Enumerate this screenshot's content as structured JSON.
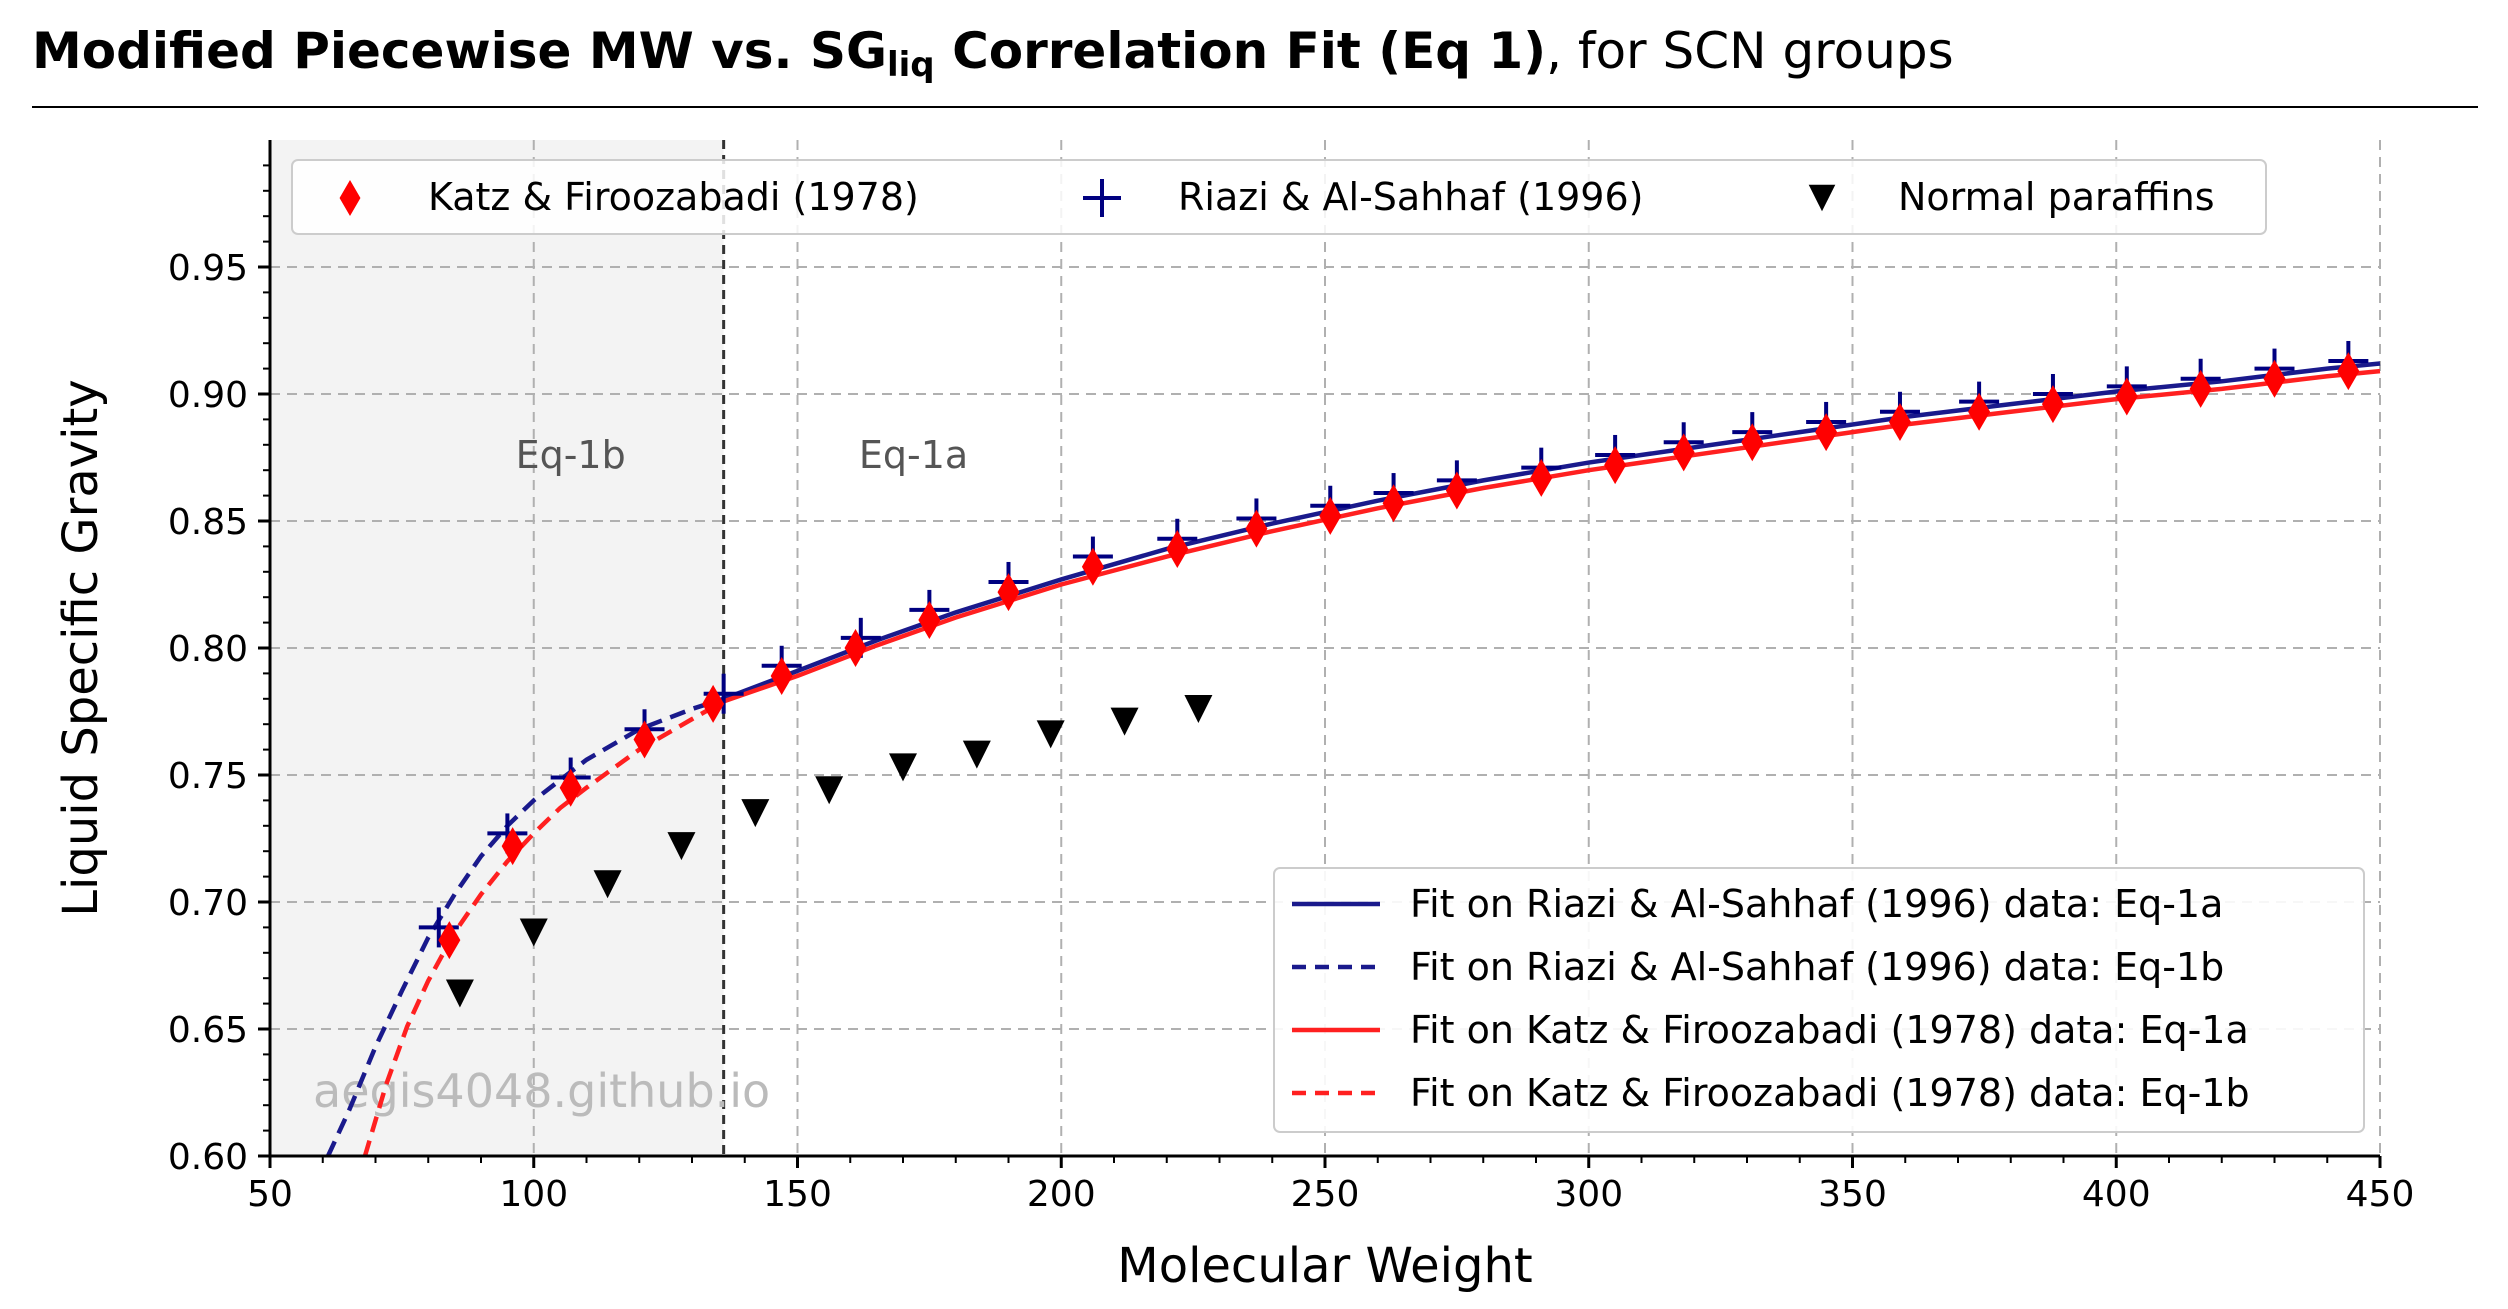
{
  "title": {
    "bold_part1": "Modified Piecewise MW vs. ",
    "bold_sg": "SG",
    "bold_sub": "liq",
    "bold_part2": " Correlation Fit (Eq 1)",
    "normal_part": ", for SCN groups"
  },
  "chart_data": {
    "type": "scatter",
    "xlabel": "Molecular Weight",
    "ylabel": "Liquid Specific Gravity",
    "xlim": [
      50,
      450
    ],
    "ylim": [
      0.6,
      1.0
    ],
    "x_ticks": [
      "50",
      "100",
      "150",
      "200",
      "250",
      "300",
      "350",
      "400",
      "450"
    ],
    "x_tick_values": [
      50,
      100,
      150,
      200,
      250,
      300,
      350,
      400,
      450
    ],
    "y_ticks": [
      "0.60",
      "0.65",
      "0.70",
      "0.75",
      "0.80",
      "0.85",
      "0.90",
      "0.95"
    ],
    "y_tick_values": [
      0.6,
      0.65,
      0.7,
      0.75,
      0.8,
      0.85,
      0.9,
      0.95
    ],
    "grid": true,
    "shaded_region": {
      "x": [
        50,
        136
      ],
      "color": "#f3f3f3"
    },
    "divider_x": 136,
    "region_labels": [
      {
        "text": "Eq-1b",
        "x": 107,
        "y": 0.875
      },
      {
        "text": "Eq-1a",
        "x": 172,
        "y": 0.875
      }
    ],
    "watermark": "aegis4048.github.io",
    "top_legend": {
      "placement": "top",
      "entries": [
        {
          "label": "Katz & Firoozabadi (1978)",
          "marker": "diamond",
          "color": "#ff0000"
        },
        {
          "label": "Riazi & Al-Sahhaf (1996)",
          "marker": "plus",
          "color": "#000080"
        },
        {
          "label": "Normal paraffins",
          "marker": "triangle-down",
          "color": "#000000"
        }
      ]
    },
    "fit_legend": {
      "placement": "lower-right",
      "entries": [
        {
          "label": "Fit on Riazi & Al-Sahhaf (1996) data: Eq-1a",
          "color": "#1a1a8c",
          "dash": false
        },
        {
          "label": "Fit on Riazi & Al-Sahhaf (1996) data: Eq-1b",
          "color": "#1a1a8c",
          "dash": true
        },
        {
          "label": "Fit on Katz & Firoozabadi (1978) data: Eq-1a",
          "color": "#ff2020",
          "dash": false
        },
        {
          "label": "Fit on Katz & Firoozabadi (1978) data: Eq-1b",
          "color": "#ff2020",
          "dash": true
        }
      ]
    },
    "series": [
      {
        "name": "Katz & Firoozabadi (1978)",
        "marker": "diamond",
        "color": "#ff0000",
        "x": [
          84,
          96,
          107,
          121,
          134,
          147,
          161,
          175,
          190,
          206,
          222,
          237,
          251,
          263,
          275,
          291,
          305,
          318,
          331,
          345,
          359,
          374,
          388,
          402,
          416,
          430,
          444
        ],
        "y": [
          0.685,
          0.722,
          0.745,
          0.764,
          0.778,
          0.789,
          0.8,
          0.811,
          0.822,
          0.832,
          0.839,
          0.847,
          0.852,
          0.857,
          0.862,
          0.867,
          0.872,
          0.877,
          0.881,
          0.885,
          0.889,
          0.893,
          0.896,
          0.899,
          0.902,
          0.906,
          0.909
        ]
      },
      {
        "name": "Riazi & Al-Sahhaf (1996)",
        "marker": "plus",
        "color": "#000080",
        "x": [
          82,
          95,
          107,
          121,
          136,
          147,
          162,
          175,
          190,
          206,
          222,
          237,
          251,
          263,
          275,
          291,
          305,
          318,
          331,
          345,
          359,
          374,
          388,
          402,
          416,
          430,
          444
        ],
        "y": [
          0.69,
          0.727,
          0.749,
          0.768,
          0.782,
          0.793,
          0.804,
          0.815,
          0.826,
          0.836,
          0.843,
          0.851,
          0.856,
          0.861,
          0.866,
          0.871,
          0.876,
          0.881,
          0.885,
          0.889,
          0.893,
          0.897,
          0.9,
          0.903,
          0.906,
          0.91,
          0.913
        ]
      },
      {
        "name": "Normal paraffins",
        "marker": "triangle-down",
        "color": "#000000",
        "x": [
          86,
          100,
          114,
          128,
          142,
          156,
          170,
          184,
          198,
          212,
          226
        ],
        "y": [
          0.664,
          0.688,
          0.707,
          0.722,
          0.735,
          0.744,
          0.753,
          0.758,
          0.766,
          0.771,
          0.776
        ]
      }
    ],
    "fits": [
      {
        "label": "Fit on Riazi & Al-Sahhaf (1996) data: Eq-1a",
        "color": "#1a1a8c",
        "dash": false,
        "x": [
          136,
          150,
          165,
          180,
          200,
          220,
          240,
          260,
          280,
          300,
          320,
          340,
          360,
          380,
          400,
          420,
          440,
          450
        ],
        "y": [
          0.78,
          0.791,
          0.803,
          0.814,
          0.827,
          0.839,
          0.849,
          0.858,
          0.866,
          0.873,
          0.879,
          0.885,
          0.891,
          0.896,
          0.901,
          0.905,
          0.91,
          0.912
        ]
      },
      {
        "label": "Fit on Riazi & Al-Sahhaf (1996) data: Eq-1b",
        "color": "#1a1a8c",
        "dash": true,
        "x": [
          61,
          65,
          70,
          75,
          80,
          85,
          90,
          95,
          100,
          105,
          110,
          120,
          130,
          136
        ],
        "y": [
          0.6,
          0.618,
          0.643,
          0.665,
          0.686,
          0.703,
          0.718,
          0.73,
          0.74,
          0.748,
          0.756,
          0.768,
          0.776,
          0.78
        ]
      },
      {
        "label": "Fit on Katz & Firoozabadi (1978) data: Eq-1a",
        "color": "#ff2020",
        "dash": false,
        "x": [
          136,
          150,
          165,
          180,
          200,
          220,
          240,
          260,
          280,
          300,
          320,
          340,
          360,
          380,
          400,
          420,
          440,
          450
        ],
        "y": [
          0.779,
          0.789,
          0.801,
          0.812,
          0.825,
          0.836,
          0.846,
          0.855,
          0.863,
          0.87,
          0.876,
          0.882,
          0.888,
          0.893,
          0.898,
          0.902,
          0.907,
          0.909
        ]
      },
      {
        "label": "Fit on Katz & Firoozabadi (1978) data: Eq-1b",
        "color": "#ff2020",
        "dash": true,
        "x": [
          68,
          72,
          76,
          80,
          85,
          90,
          95,
          100,
          105,
          110,
          120,
          130,
          136
        ],
        "y": [
          0.6,
          0.628,
          0.651,
          0.669,
          0.688,
          0.703,
          0.716,
          0.727,
          0.737,
          0.745,
          0.76,
          0.772,
          0.779
        ]
      }
    ]
  }
}
